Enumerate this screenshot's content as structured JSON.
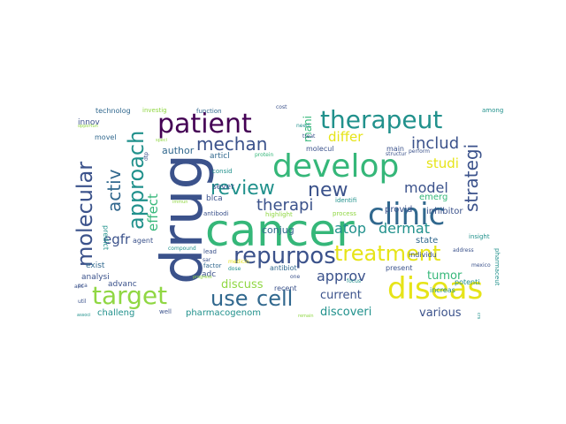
{
  "wordcloud": {
    "palette": {
      "purple": "#440154",
      "indigo": "#3b528b",
      "slate": "#31688e",
      "teal": "#21918c",
      "green": "#35b779",
      "lime": "#90d743",
      "yellow": "#e6e418"
    },
    "words": [
      {
        "text": "drug",
        "color": "#3b528b"
      },
      {
        "text": "cancer",
        "color": "#35b779"
      },
      {
        "text": "develop",
        "color": "#35b779"
      },
      {
        "text": "clinic",
        "color": "#31688e"
      },
      {
        "text": "diseas",
        "color": "#e6e418"
      },
      {
        "text": "therapeut",
        "color": "#21918c"
      },
      {
        "text": "patient",
        "color": "#440154"
      },
      {
        "text": "target",
        "color": "#90d743"
      },
      {
        "text": "repurpos",
        "color": "#3b528b"
      },
      {
        "text": "treatment",
        "color": "#e6e418"
      },
      {
        "text": "use",
        "color": "#31688e"
      },
      {
        "text": "cell",
        "color": "#31688e"
      },
      {
        "text": "molecular",
        "color": "#3b528b"
      },
      {
        "text": "approach",
        "color": "#21918c"
      },
      {
        "text": "review",
        "color": "#21918c"
      },
      {
        "text": "new",
        "color": "#3b528b"
      },
      {
        "text": "mechan",
        "color": "#3b528b"
      },
      {
        "text": "strategi",
        "color": "#3b528b"
      },
      {
        "text": "activ",
        "color": "#31688e"
      },
      {
        "text": "includ",
        "color": "#3b528b"
      },
      {
        "text": "therapi",
        "color": "#3b528b"
      },
      {
        "text": "model",
        "color": "#3b528b"
      },
      {
        "text": "atop",
        "color": "#21918c"
      },
      {
        "text": "dermat",
        "color": "#21918c"
      },
      {
        "text": "approv",
        "color": "#3b528b"
      },
      {
        "text": "studi",
        "color": "#e6e418"
      },
      {
        "text": "differ",
        "color": "#e6e418"
      },
      {
        "text": "egfr",
        "color": "#3b528b"
      },
      {
        "text": "effect",
        "color": "#35b779"
      },
      {
        "text": "discuss",
        "color": "#90d743"
      },
      {
        "text": "tumor",
        "color": "#35b779"
      },
      {
        "text": "current",
        "color": "#3b528b"
      },
      {
        "text": "various",
        "color": "#3b528b"
      },
      {
        "text": "discoveri",
        "color": "#21918c"
      },
      {
        "text": "mani",
        "color": "#35b779"
      },
      {
        "text": "author",
        "color": "#31688e"
      },
      {
        "text": "conjug",
        "color": "#31688e"
      },
      {
        "text": "emerg",
        "color": "#35b779"
      },
      {
        "text": "inhibitor",
        "color": "#3b528b"
      },
      {
        "text": "provid",
        "color": "#3b528b"
      },
      {
        "text": "state",
        "color": "#31688e"
      },
      {
        "text": "pharmacogenom",
        "color": "#21918c"
      },
      {
        "text": "challeng",
        "color": "#21918c"
      },
      {
        "text": "advanc",
        "color": "#3b528b"
      },
      {
        "text": "analysi",
        "color": "#3b528b"
      },
      {
        "text": "exist",
        "color": "#31688e"
      },
      {
        "text": "sever",
        "color": "#3b528b"
      },
      {
        "text": "blca",
        "color": "#3b528b"
      },
      {
        "text": "articl",
        "color": "#31688e"
      },
      {
        "text": "innov",
        "color": "#3b528b"
      },
      {
        "text": "technolog",
        "color": "#31688e"
      },
      {
        "text": "investig",
        "color": "#90d743"
      },
      {
        "text": "function",
        "color": "#31688e"
      },
      {
        "text": "among",
        "color": "#21918c"
      },
      {
        "text": "main",
        "color": "#3b528b"
      },
      {
        "text": "molecul",
        "color": "#3b528b"
      },
      {
        "text": "potenti",
        "color": "#21918c"
      },
      {
        "text": "increas",
        "color": "#21918c"
      },
      {
        "text": "present",
        "color": "#3b528b"
      },
      {
        "text": "individu",
        "color": "#3b528b"
      },
      {
        "text": "insight",
        "color": "#21918c"
      },
      {
        "text": "pharmaceut",
        "color": "#21918c"
      },
      {
        "text": "antibiot",
        "color": "#31688e"
      },
      {
        "text": "recent",
        "color": "#3b528b"
      },
      {
        "text": "adc",
        "color": "#3b528b"
      },
      {
        "text": "agent",
        "color": "#3b528b"
      },
      {
        "text": "movel",
        "color": "#31688e"
      },
      {
        "text": "predict",
        "color": "#21918c"
      },
      {
        "text": "antibodi",
        "color": "#3b528b"
      },
      {
        "text": "process",
        "color": "#90d743"
      },
      {
        "text": "identifi",
        "color": "#21918c"
      },
      {
        "text": "highlight",
        "color": "#90d743"
      },
      {
        "text": "factor",
        "color": "#31688e"
      },
      {
        "text": "lead",
        "color": "#3b528b"
      },
      {
        "text": "compound",
        "color": "#21918c"
      },
      {
        "text": "medicin",
        "color": "#e6e418"
      },
      {
        "text": "dose",
        "color": "#21918c"
      },
      {
        "text": "protein",
        "color": "#35b779"
      },
      {
        "text": "consid",
        "color": "#21918c"
      },
      {
        "text": "structur",
        "color": "#3b528b"
      },
      {
        "text": "treat",
        "color": "#3b528b"
      },
      {
        "text": "need",
        "color": "#21918c"
      },
      {
        "text": "cost",
        "color": "#3b528b"
      },
      {
        "text": "one",
        "color": "#3b528b"
      },
      {
        "text": "focus",
        "color": "#21918c"
      },
      {
        "text": "address",
        "color": "#3b528b"
      },
      {
        "text": "mexico",
        "color": "#3b528b"
      },
      {
        "text": "util",
        "color": "#3b528b"
      },
      {
        "text": "pca",
        "color": "#3b528b"
      },
      {
        "text": "anc",
        "color": "#3b528b"
      },
      {
        "text": "associ",
        "color": "#21918c"
      },
      {
        "text": "remain",
        "color": "#90d743"
      },
      {
        "text": "crs",
        "color": "#21918c"
      },
      {
        "text": "sar",
        "color": "#3b528b"
      },
      {
        "text": "well",
        "color": "#3b528b"
      },
      {
        "text": "perform",
        "color": "#3b528b"
      },
      {
        "text": "opportun",
        "color": "#90d743"
      },
      {
        "text": "speci",
        "color": "#90d743"
      },
      {
        "text": "dtp",
        "color": "#3b528b"
      },
      {
        "text": "immun",
        "color": "#90d743"
      },
      {
        "text": "progress",
        "color": "#90d743"
      }
    ]
  }
}
